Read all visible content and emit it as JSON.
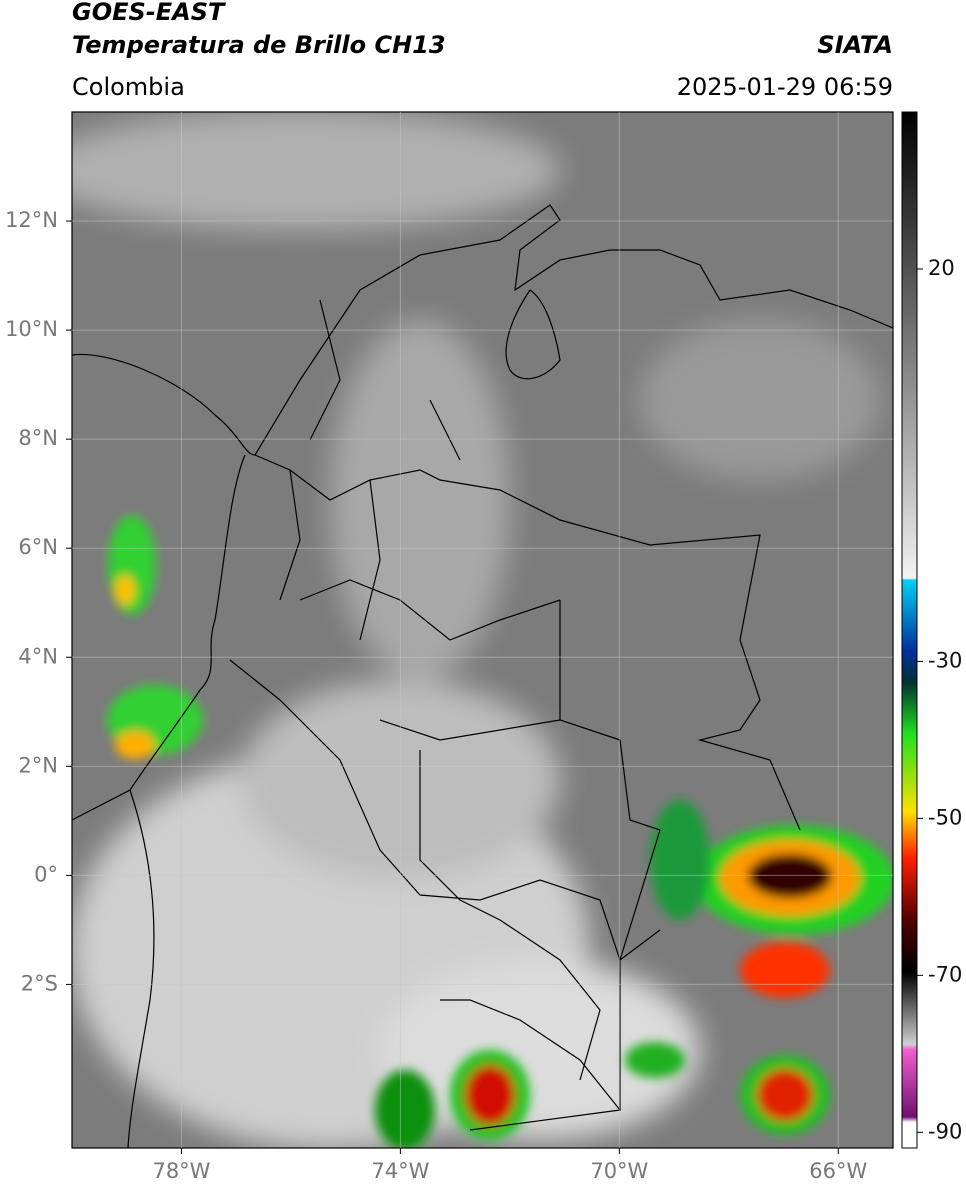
{
  "header": {
    "title": "GOES-EAST",
    "subtitle": "Temperatura de Brillo CH13",
    "source": "SIATA",
    "region": "Colombia",
    "datetime": "2025-01-29 06:59"
  },
  "map": {
    "lonlim": [
      -80,
      -65
    ],
    "latlim": [
      -5,
      14
    ],
    "lonticks": [
      {
        "value": -78,
        "label": "78°W"
      },
      {
        "value": -74,
        "label": "74°W"
      },
      {
        "value": -70,
        "label": "70°W"
      },
      {
        "value": -66,
        "label": "66°W"
      }
    ],
    "latticks": [
      {
        "value": 12,
        "label": "12°N"
      },
      {
        "value": 10,
        "label": "10°N"
      },
      {
        "value": 8,
        "label": "8°N"
      },
      {
        "value": 6,
        "label": "6°N"
      },
      {
        "value": 4,
        "label": "4°N"
      },
      {
        "value": 2,
        "label": "2°N"
      },
      {
        "value": 0,
        "label": "0°"
      },
      {
        "value": -2,
        "label": "2°S"
      }
    ],
    "grid": true
  },
  "colorbar": {
    "clim": [
      -92,
      40
    ],
    "ticks": [
      20,
      -30,
      -50,
      -70,
      -90
    ]
  }
}
